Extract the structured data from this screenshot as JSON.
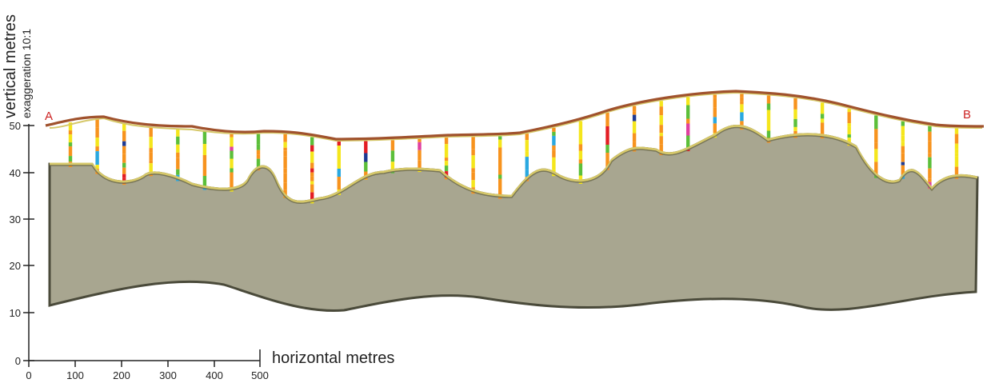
{
  "labels": {
    "y_title": "vertical metres",
    "y_subtitle": "exaggeration 10:1",
    "x_title": "horizontal metres",
    "section_start": "A",
    "section_end": "B"
  },
  "y_axis": {
    "ticks": [
      "0",
      "10",
      "20",
      "30",
      "40",
      "50"
    ]
  },
  "x_axis": {
    "ticks": [
      "0",
      "100",
      "200",
      "300",
      "400",
      "500"
    ]
  },
  "colors": {
    "ground_surface": "#a0522d",
    "regolith_base": "#d6c86a",
    "bedrock_fill": "#a8a690",
    "bedrock_outline": "#4a4a3a",
    "marker_red": "#cc2222",
    "log_palette": [
      "#f7931e",
      "#f5e61c",
      "#5cbf3a",
      "#e31e24",
      "#2aa8e0",
      "#1f3a93",
      "#e040a0"
    ]
  },
  "drillholes": {
    "count": 34
  }
}
